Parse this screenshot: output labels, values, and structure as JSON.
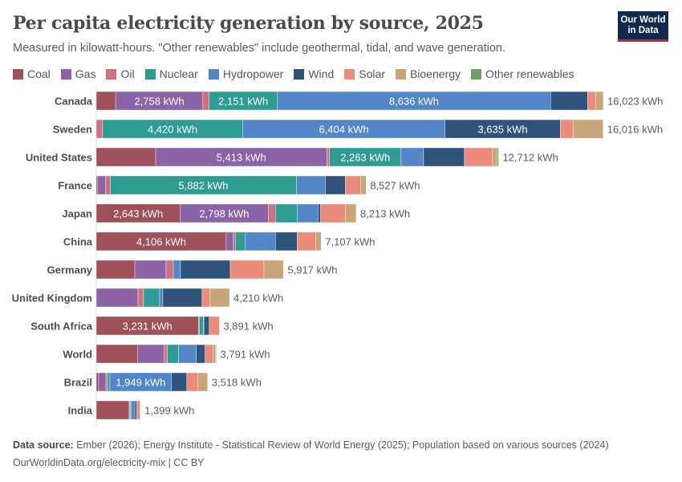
{
  "header": {
    "title": "Per capita electricity generation by source, 2025",
    "subtitle": "Measured in kilowatt-hours. \"Other renewables\" include geothermal, tidal, and wave generation.",
    "logo_text": "Our World in Data"
  },
  "footer": {
    "source_label": "Data source:",
    "source": "Ember (2026); Energy Institute - Statistical Review of World Energy (2025); Population based on various sources (2024)",
    "link": "OurWorldinData.org/electricity-mix | CC BY"
  },
  "chart_data": {
    "type": "bar",
    "orientation": "horizontal",
    "stacked": true,
    "unit": "kWh",
    "title": "Per capita electricity generation by source, 2025",
    "legend_position": "top",
    "categories": [
      "Canada",
      "Sweden",
      "United States",
      "France",
      "Japan",
      "China",
      "Germany",
      "United Kingdom",
      "South Africa",
      "World",
      "Brazil",
      "India"
    ],
    "totals": [
      "16,023 kWh",
      "16,016 kWh",
      "12,712 kWh",
      "8,527 kWh",
      "8,213 kWh",
      "7,107 kWh",
      "5,917 kWh",
      "4,210 kWh",
      "3,891 kWh",
      "3,791 kWh",
      "3,518 kWh",
      "1,399 kWh"
    ],
    "total_values": [
      16023,
      16016,
      12712,
      8527,
      8213,
      7107,
      5917,
      4210,
      3891,
      3791,
      3518,
      1399
    ],
    "series": [
      {
        "name": "Coal",
        "color": "#9e5158",
        "values": [
          612,
          0,
          1876,
          43,
          2643,
          4106,
          1217,
          0,
          3231,
          1309,
          75,
          1040
        ]
      },
      {
        "name": "Gas",
        "color": "#8b63a6",
        "values": [
          2758,
          0,
          5413,
          250,
          2798,
          228,
          989,
          1318,
          0,
          837,
          230,
          25
        ]
      },
      {
        "name": "Oil",
        "color": "#d0707f",
        "values": [
          200,
          200,
          80,
          150,
          220,
          60,
          228,
          177,
          25,
          100,
          50,
          5
        ]
      },
      {
        "name": "Nuclear",
        "color": "#2e9c93",
        "values": [
          2151,
          4420,
          2263,
          5882,
          685,
          304,
          0,
          507,
          125,
          355,
          75,
          40
        ]
      },
      {
        "name": "Hydropower",
        "color": "#5386c8",
        "values": [
          8636,
          6404,
          710,
          913,
          660,
          963,
          228,
          100,
          20,
          558,
          1949,
          110
        ]
      },
      {
        "name": "Wind",
        "color": "#30537c",
        "values": [
          1166,
          3635,
          1293,
          634,
          80,
          685,
          1572,
          1242,
          170,
          279,
          482,
          60
        ]
      },
      {
        "name": "Solar",
        "color": "#eb8b7c",
        "values": [
          250,
          406,
          887,
          480,
          786,
          583,
          1065,
          253,
          320,
          253,
          355,
          100
        ]
      },
      {
        "name": "Bioenergy",
        "color": "#c9a57a",
        "values": [
          250,
          951,
          150,
          175,
          341,
          178,
          618,
          613,
          0,
          80,
          302,
          19
        ]
      },
      {
        "name": "Other renewables",
        "color": "#6c9e66",
        "values": [
          0,
          0,
          40,
          0,
          0,
          0,
          0,
          0,
          0,
          20,
          0,
          0
        ]
      }
    ],
    "segment_labels": {
      "Canada": {
        "Gas": "2,758 kWh",
        "Nuclear": "2,151 kWh",
        "Hydropower": "8,636 kWh"
      },
      "Sweden": {
        "Nuclear": "4,420 kWh",
        "Hydropower": "6,404 kWh",
        "Wind": "3,635 kWh"
      },
      "United States": {
        "Gas": "5,413 kWh",
        "Nuclear": "2,263 kWh"
      },
      "France": {
        "Nuclear": "5,882 kWh"
      },
      "Japan": {
        "Coal": "2,643 kWh",
        "Gas": "2,798 kWh"
      },
      "China": {
        "Coal": "4,106 kWh"
      },
      "South Africa": {
        "Coal": "3,231 kWh"
      },
      "Brazil": {
        "Hydropower": "1,949 kWh"
      }
    }
  }
}
